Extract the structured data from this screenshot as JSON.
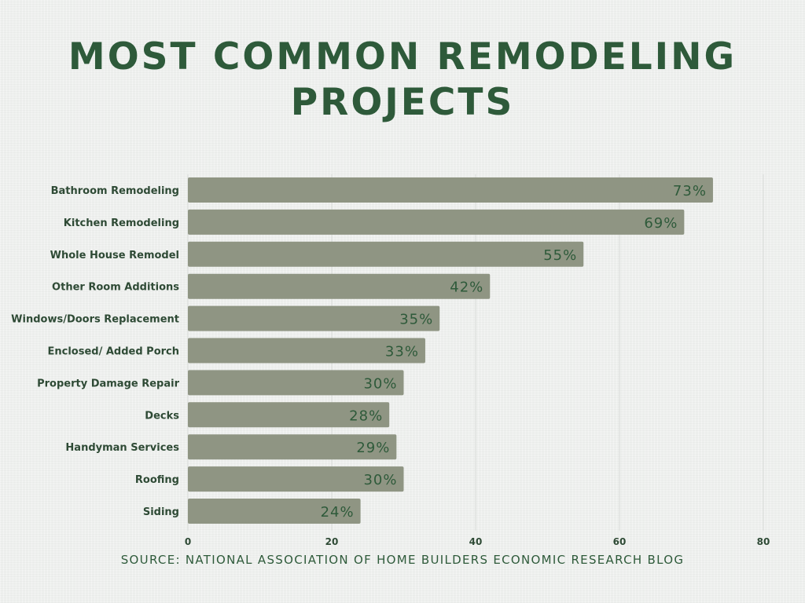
{
  "chart_data": {
    "type": "bar",
    "orientation": "horizontal",
    "title_lines": [
      "MOST COMMON REMODELING",
      "PROJECTS"
    ],
    "categories": [
      "Bathroom Remodeling",
      "Kitchen Remodeling",
      "Whole House Remodel",
      "Other Room Additions",
      "Windows/Doors Replacement",
      "Enclosed/ Added Porch",
      "Property Damage Repair",
      "Decks",
      "Handyman Services",
      "Roofing",
      "Siding"
    ],
    "values": [
      73,
      69,
      55,
      42,
      35,
      33,
      30,
      28,
      29,
      30,
      24
    ],
    "value_labels": [
      "73%",
      "69%",
      "55%",
      "42%",
      "35%",
      "33%",
      "30%",
      "28%",
      "29%",
      "30%",
      "24%"
    ],
    "xlim": [
      0,
      80
    ],
    "xticks": [
      0,
      20,
      40,
      60,
      80
    ],
    "grid": true,
    "bar_color": "#8f9583",
    "text_color": "#2e5a3a"
  },
  "source": "SOURCE: NATIONAL ASSOCIATION OF HOME BUILDERS ECONOMIC RESEARCH BLOG"
}
